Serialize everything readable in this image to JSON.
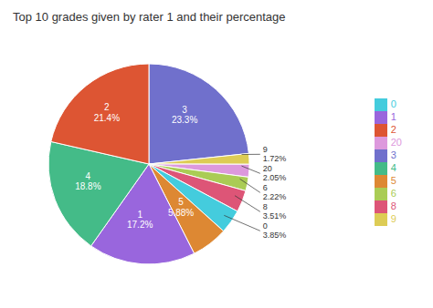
{
  "chart_data": {
    "type": "pie",
    "title": "Top 10 grades given by rater 1 and their percentage",
    "categories": [
      "3",
      "9",
      "20",
      "6",
      "8",
      "0",
      "5",
      "1",
      "4",
      "2"
    ],
    "values": [
      23.3,
      1.72,
      2.05,
      2.22,
      3.51,
      3.85,
      5.88,
      17.2,
      18.8,
      21.4
    ],
    "value_labels": [
      "23.3%",
      "1.72%",
      "2.05%",
      "2.22%",
      "3.51%",
      "3.85%",
      "5.88%",
      "17.2%",
      "18.8%",
      "21.4%"
    ],
    "colors": [
      "#7070cc",
      "#ddcc55",
      "#dd99dd",
      "#aacc55",
      "#dd5577",
      "#44ccdd",
      "#dd8833",
      "#9966dd",
      "#44bb88",
      "#dd5533"
    ],
    "data_labels": true,
    "legend": "right"
  }
}
